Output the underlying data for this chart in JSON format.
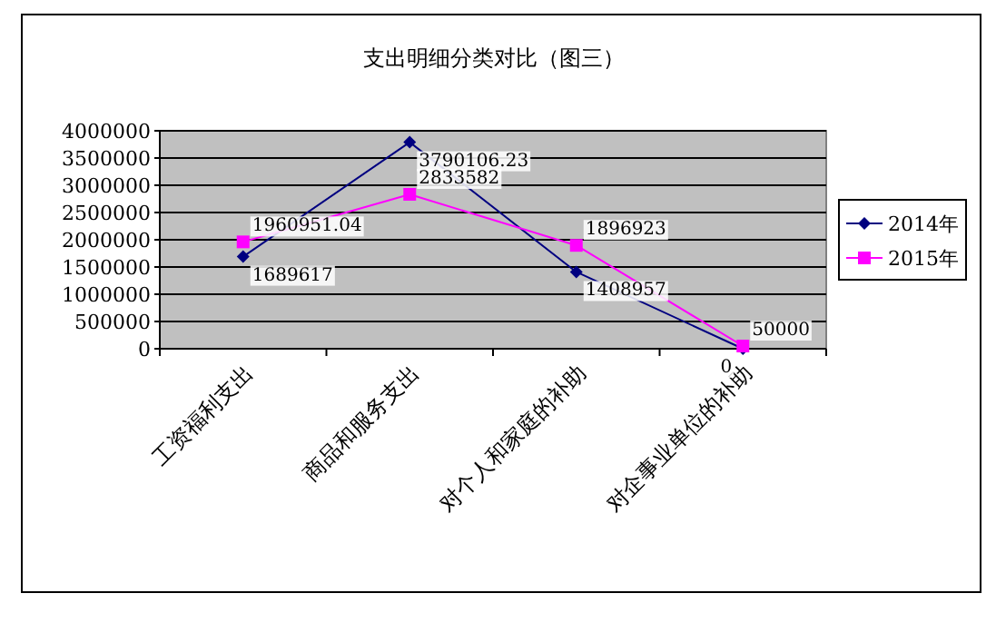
{
  "chart_data": {
    "type": "line",
    "title": "支出明细分类对比（图三）",
    "categories": [
      "工资福利支出",
      "商品和服务支出",
      "对个人和家庭的补助",
      "对企事业单位的补助"
    ],
    "series": [
      {
        "name": "2014年",
        "color": "#000080",
        "marker": "diamond",
        "values": [
          1689617,
          3790106.23,
          1408957,
          0
        ]
      },
      {
        "name": "2015年",
        "color": "#ff00ff",
        "marker": "square",
        "values": [
          1960951.04,
          2833582,
          1896923,
          50000
        ]
      }
    ],
    "ylim": [
      0,
      4000000
    ],
    "yticks": [
      0,
      500000,
      1000000,
      1500000,
      2000000,
      2500000,
      3000000,
      3500000,
      4000000
    ],
    "grid": "y",
    "legend": "right",
    "data_labels": true
  }
}
